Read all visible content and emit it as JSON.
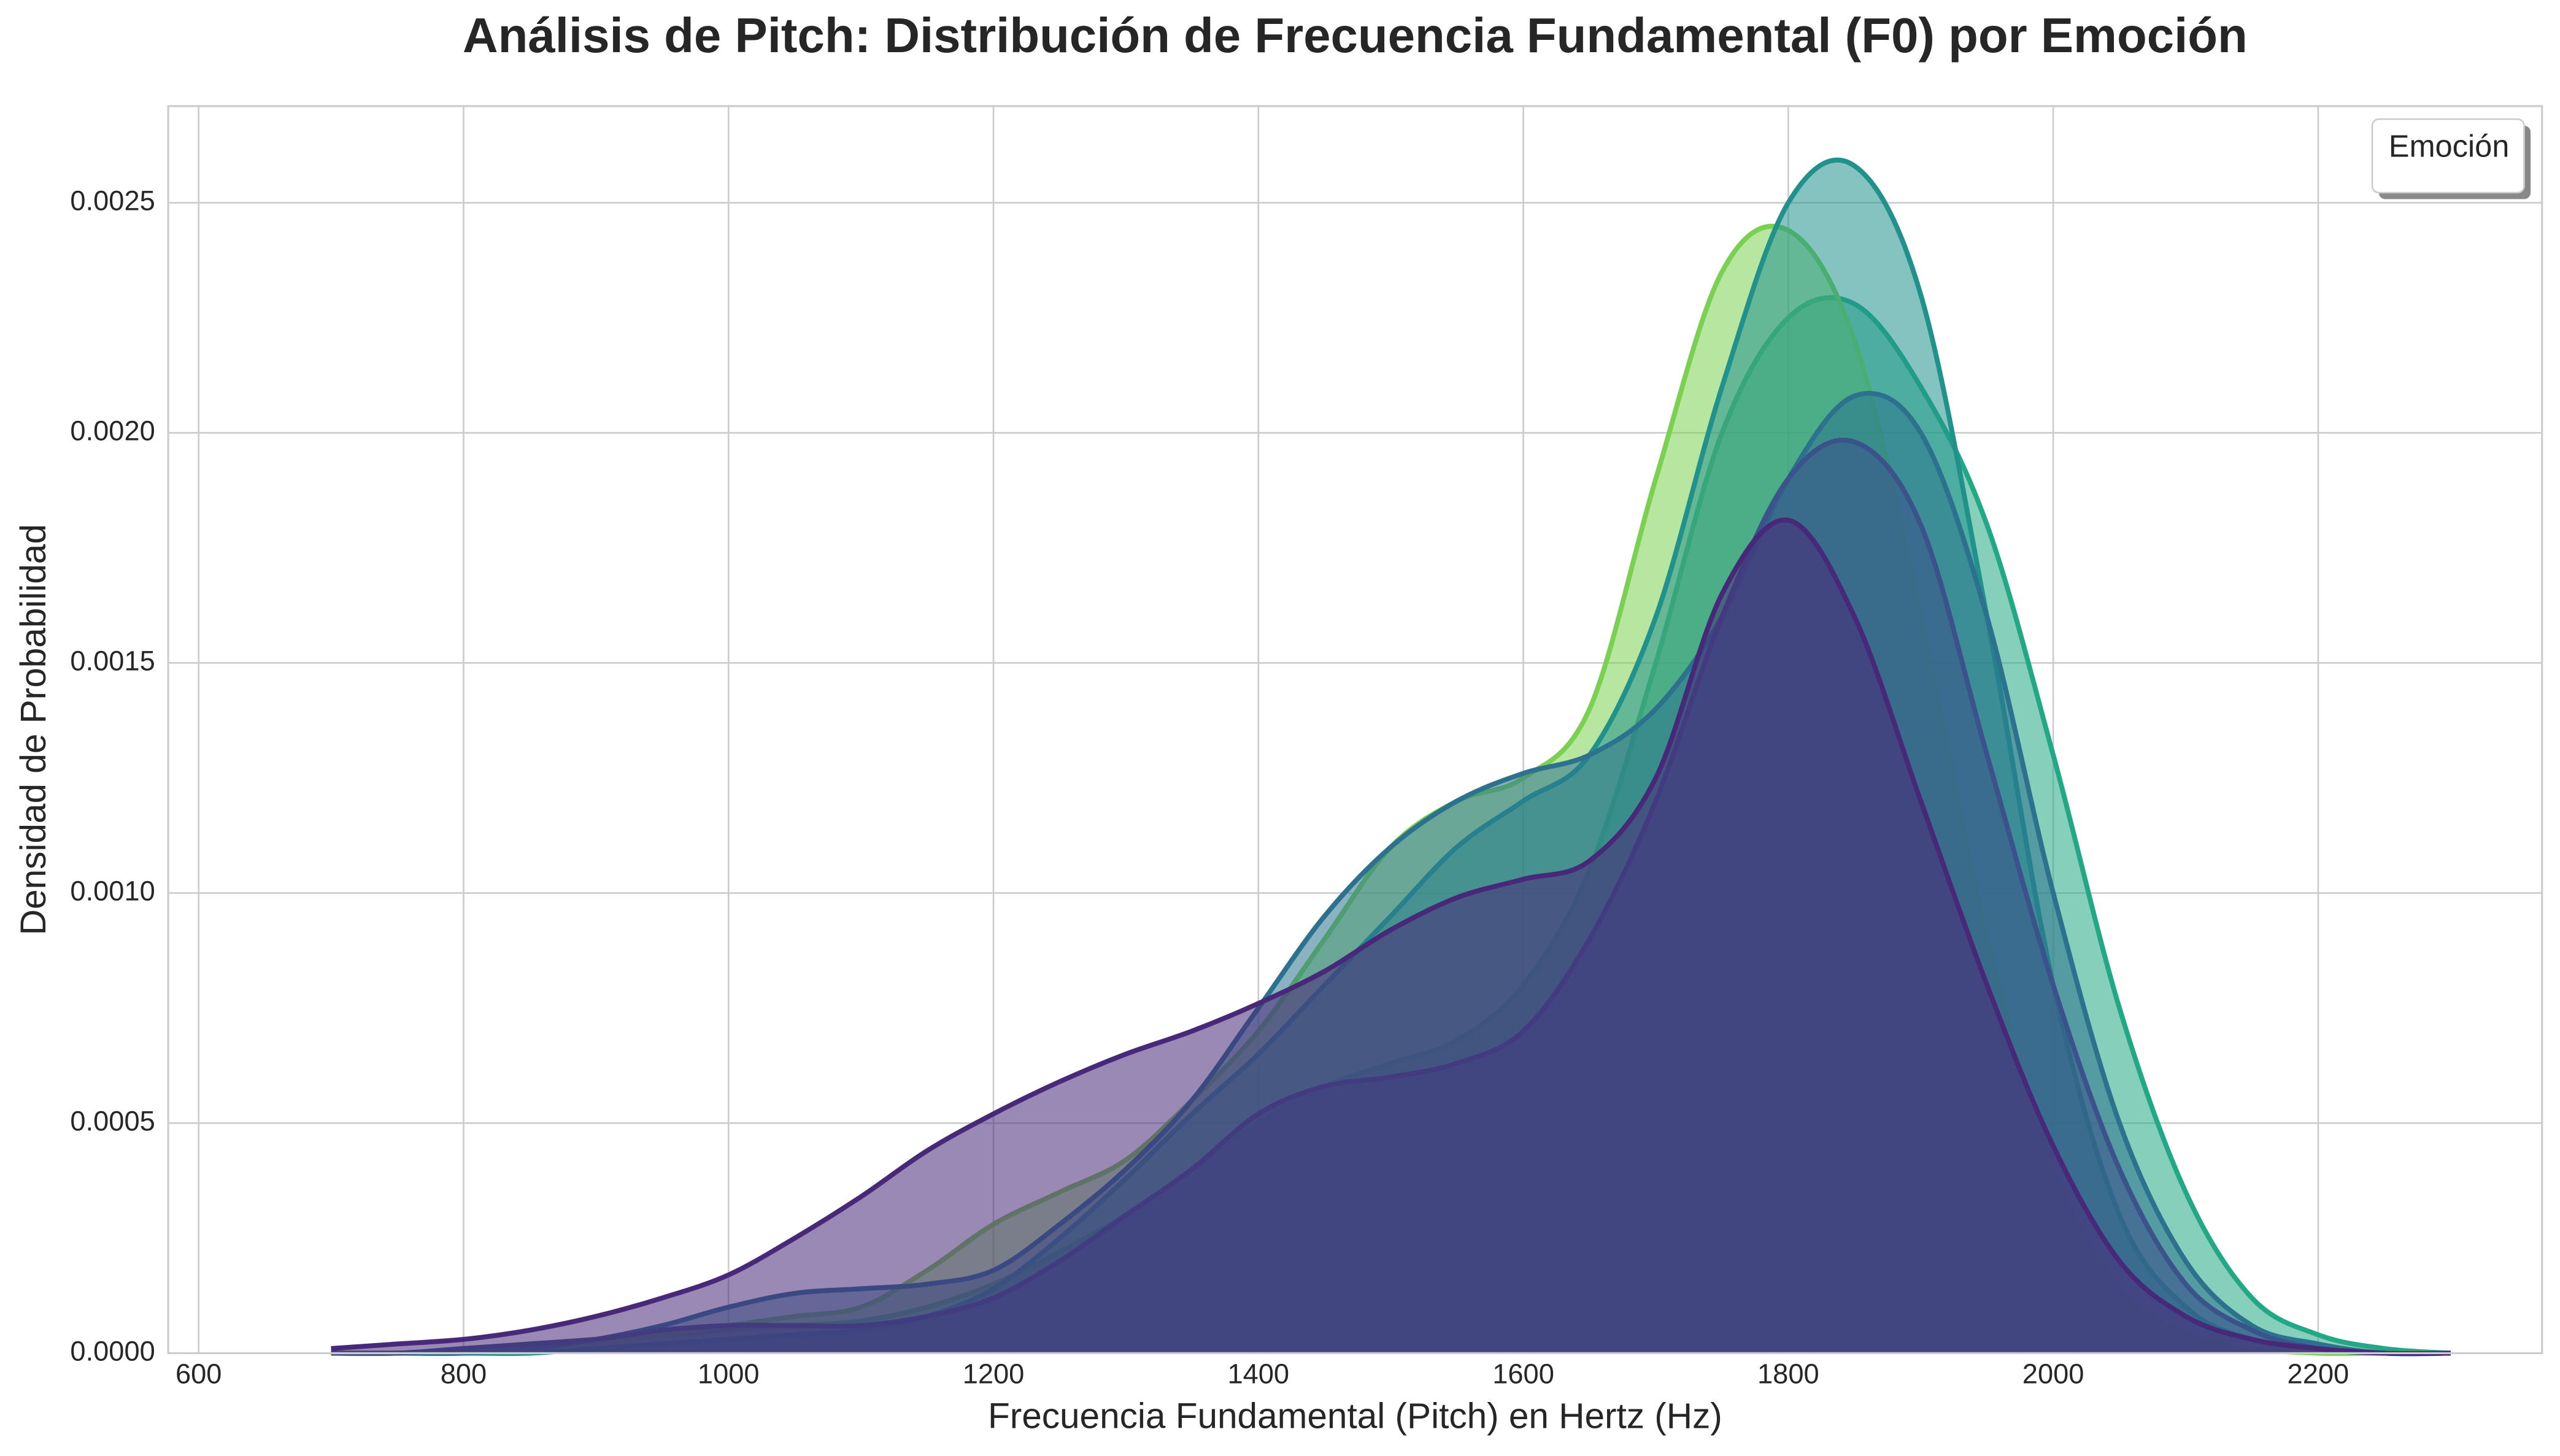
{
  "chart_data": {
    "type": "kde",
    "title": "Análisis de Pitch: Distribución de Frecuencia Fundamental (F0) por Emoción",
    "xlabel": "Frecuencia Fundamental (Pitch) en Hertz (Hz)",
    "ylabel": "Densidad de Probabilidad",
    "legend_title": "Emoción",
    "legend": "upper right",
    "grid": true,
    "xlim": [
      577,
      2369
    ],
    "ylim": [
      0,
      0.00271
    ],
    "xticks": [
      600,
      800,
      1000,
      1200,
      1400,
      1600,
      1800,
      2000,
      2200
    ],
    "yticks": [
      {
        "value": 0,
        "label": "0.0000"
      },
      {
        "value": 0.0005,
        "label": "0.0005"
      },
      {
        "value": 0.001,
        "label": "0.0010"
      },
      {
        "value": 0.0015,
        "label": "0.0015"
      },
      {
        "value": 0.002,
        "label": "0.0020"
      },
      {
        "value": 0.0025,
        "label": "0.0025"
      }
    ],
    "x": [
      700,
      750,
      800,
      850,
      900,
      950,
      1000,
      1050,
      1100,
      1150,
      1200,
      1250,
      1300,
      1350,
      1400,
      1450,
      1500,
      1550,
      1600,
      1650,
      1700,
      1750,
      1800,
      1850,
      1900,
      1950,
      2000,
      2050,
      2100,
      2150,
      2200,
      2250,
      2300
    ],
    "series": [
      {
        "color": "#22a884",
        "values": [
          0,
          0,
          1e-05,
          2e-05,
          3e-05,
          4e-05,
          5e-05,
          6e-05,
          7e-05,
          0.0001,
          0.00015,
          0.00022,
          0.0003,
          0.0004,
          0.0005,
          0.00058,
          0.00063,
          0.00068,
          0.0008,
          0.00105,
          0.0015,
          0.002,
          0.00225,
          0.00228,
          0.0021,
          0.0018,
          0.0013,
          0.00075,
          0.00035,
          0.00012,
          4e-05,
          1e-05,
          0
        ]
      },
      {
        "color": "#7ad151",
        "values": [
          0,
          0,
          0,
          1e-05,
          2e-05,
          4e-05,
          6e-05,
          8e-05,
          0.0001,
          0.00018,
          0.00028,
          0.00035,
          0.00042,
          0.00055,
          0.0007,
          0.0009,
          0.0011,
          0.0012,
          0.00125,
          0.0014,
          0.0019,
          0.00235,
          0.00244,
          0.0022,
          0.0016,
          0.0009,
          0.0004,
          0.00014,
          4e-05,
          1e-05,
          0,
          0,
          0
        ]
      },
      {
        "color": "#21918c",
        "values": [
          0,
          0,
          0,
          0,
          1e-05,
          2e-05,
          3e-05,
          4e-05,
          5e-05,
          8e-05,
          0.00014,
          0.00025,
          0.00038,
          0.00052,
          0.00065,
          0.0008,
          0.00095,
          0.0011,
          0.0012,
          0.0013,
          0.0016,
          0.0021,
          0.0025,
          0.00258,
          0.0023,
          0.0016,
          0.0008,
          0.0003,
          0.0001,
          3e-05,
          1e-05,
          0,
          0
        ]
      },
      {
        "color": "#2c728e",
        "values": [
          0,
          0,
          0,
          1e-05,
          3e-05,
          6e-05,
          0.0001,
          0.00013,
          0.00014,
          0.00015,
          0.00018,
          0.00028,
          0.0004,
          0.00055,
          0.00075,
          0.00095,
          0.0011,
          0.0012,
          0.00126,
          0.0013,
          0.0014,
          0.0016,
          0.0019,
          0.00208,
          0.002,
          0.0016,
          0.001,
          0.0005,
          0.0002,
          6e-05,
          2e-05,
          0,
          0
        ]
      },
      {
        "color": "#3b528b",
        "values": [
          0,
          0,
          1e-05,
          2e-05,
          3e-05,
          5e-05,
          6e-05,
          6e-05,
          6e-05,
          8e-05,
          0.00012,
          0.0002,
          0.0003,
          0.0004,
          0.00052,
          0.00058,
          0.0006,
          0.00063,
          0.0007,
          0.0009,
          0.0012,
          0.0016,
          0.0019,
          0.00198,
          0.0018,
          0.0013,
          0.0008,
          0.0004,
          0.00015,
          5e-05,
          1e-05,
          0,
          0
        ]
      },
      {
        "color": "#482878",
        "values": [
          1e-05,
          2e-05,
          3e-05,
          5e-05,
          8e-05,
          0.00012,
          0.00017,
          0.00025,
          0.00034,
          0.00044,
          0.00052,
          0.00059,
          0.00065,
          0.0007,
          0.00076,
          0.00083,
          0.00092,
          0.00099,
          0.00103,
          0.00107,
          0.00125,
          0.00165,
          0.00181,
          0.0016,
          0.0012,
          0.0008,
          0.00045,
          0.0002,
          8e-05,
          3e-05,
          1e-05,
          0,
          0
        ]
      }
    ]
  }
}
